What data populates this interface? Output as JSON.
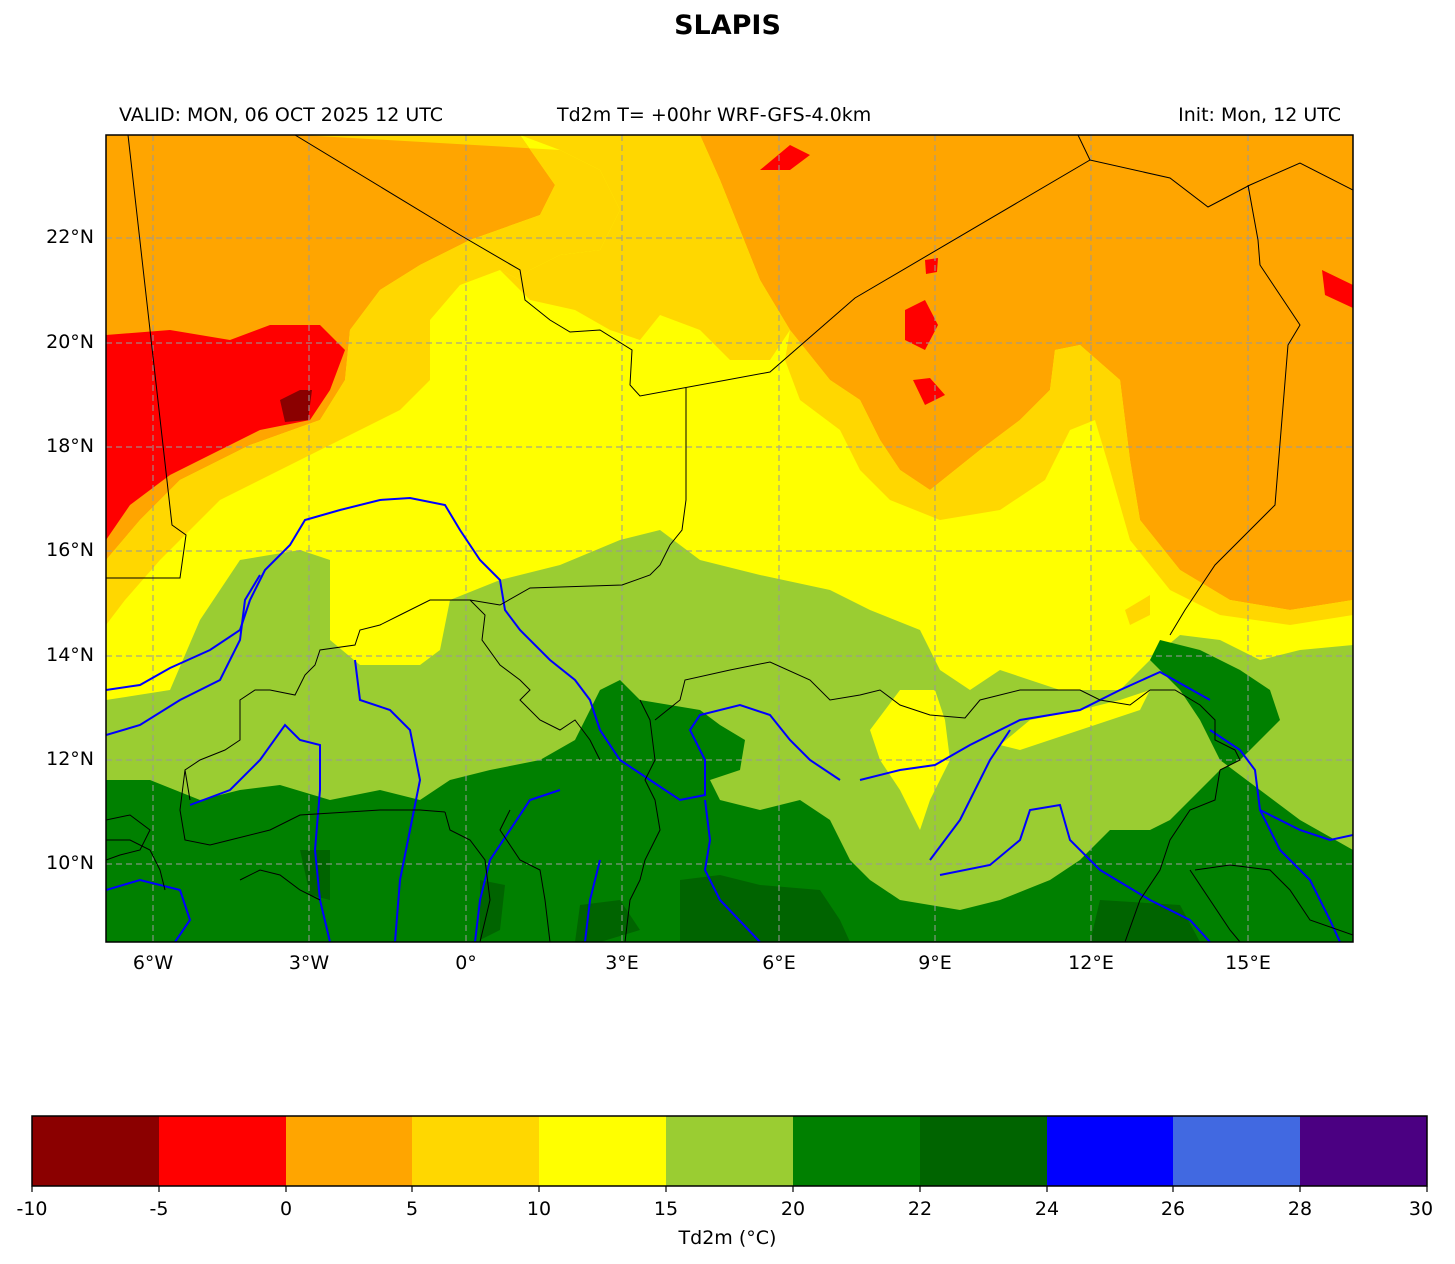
{
  "title": "SLAPIS",
  "header": {
    "valid": "VALID: MON, 06 OCT 2025 12 UTC",
    "center": "Td2m T= +00hr WRF-GFS-4.0km",
    "init": "Init: Mon, 12 UTC"
  },
  "map": {
    "variable": "Td2m",
    "lat_range": [
      8.5,
      24.0
    ],
    "lon_range": [
      -7.0,
      17.0
    ],
    "lat_ticks": [
      "22°N",
      "20°N",
      "18°N",
      "16°N",
      "14°N",
      "12°N",
      "10°N"
    ],
    "lon_ticks": [
      "6°W",
      "3°W",
      "0°",
      "3°E",
      "6°E",
      "9°E",
      "12°E",
      "15°E"
    ],
    "gridlines": true,
    "river_color": "#0000ff",
    "border_color": "#000000"
  },
  "colorbar": {
    "label": "Td2m (°C)",
    "ticks": [
      "-10",
      "-5",
      "0",
      "5",
      "10",
      "15",
      "20",
      "22",
      "24",
      "26",
      "28",
      "30"
    ],
    "colors": [
      "#8b0000",
      "#ff0000",
      "#ffa500",
      "#ffd700",
      "#ffff00",
      "#9acd32",
      "#008000",
      "#006400",
      "#0000ff",
      "#4169e1",
      "#4b0082"
    ]
  }
}
